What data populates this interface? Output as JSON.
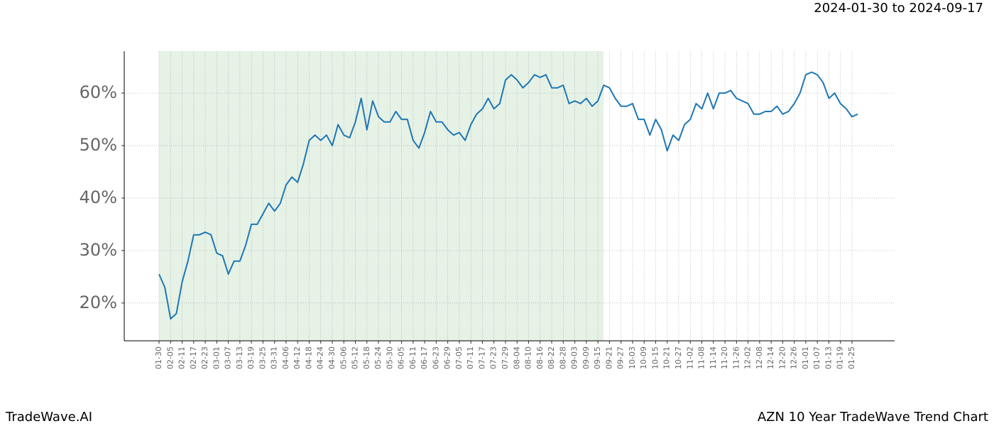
{
  "chart_data": {
    "type": "line",
    "title": "AZN 10 Year TradeWave Trend Chart",
    "subtitle": "2024-01-30 to 2024-09-17",
    "brand": "TradeWave.AI",
    "categories": [
      "01-30",
      null,
      "02-05",
      null,
      "02-11",
      null,
      "02-17",
      null,
      "02-23",
      null,
      "03-01",
      null,
      "03-07",
      null,
      "03-13",
      null,
      "03-19",
      null,
      "03-25",
      null,
      "03-31",
      null,
      "04-06",
      null,
      "04-12",
      null,
      "04-18",
      null,
      "04-24",
      null,
      "04-30",
      null,
      "05-06",
      null,
      "05-12",
      null,
      "05-18",
      null,
      "05-24",
      null,
      "05-30",
      null,
      "06-05",
      null,
      "06-11",
      null,
      "06-17",
      null,
      "06-23",
      null,
      "06-29",
      null,
      "07-05",
      null,
      "07-11",
      null,
      "07-17",
      null,
      "07-23",
      null,
      "07-29",
      null,
      "08-04",
      null,
      "08-10",
      null,
      "08-16",
      null,
      "08-22",
      null,
      "08-28",
      null,
      "09-03",
      null,
      "09-09",
      null,
      "09-15",
      null,
      "09-21",
      null,
      "09-27",
      null,
      "10-03",
      null,
      "10-09",
      null,
      "10-15",
      null,
      "10-21",
      null,
      "10-27",
      null,
      "11-02",
      null,
      "11-08",
      null,
      "11-14",
      null,
      "11-20",
      null,
      "11-26",
      null,
      "12-02",
      null,
      "12-08",
      null,
      "12-14",
      null,
      "12-20",
      null,
      "12-26",
      null,
      "01-01",
      null,
      "01-07",
      null,
      "01-13",
      null,
      "01-19",
      null,
      "01-25",
      null
    ],
    "series": [
      {
        "name": "AZN",
        "color": "#1f77b4",
        "values": [
          25.5,
          23,
          17,
          18,
          24,
          28,
          33,
          33,
          33.5,
          33,
          29.5,
          29,
          25.5,
          28,
          28,
          31,
          35,
          35,
          37,
          39,
          37.5,
          39,
          42.5,
          44,
          43,
          46.5,
          51,
          52,
          51,
          52,
          50,
          54,
          52,
          51.5,
          54.5,
          59,
          53,
          58.5,
          55.5,
          54.5,
          54.5,
          56.5,
          55,
          55,
          51,
          49.5,
          52.5,
          56.5,
          54.5,
          54.5,
          53,
          52,
          52.5,
          51,
          54,
          56,
          57,
          59,
          57,
          58,
          62.5,
          63.5,
          62.5,
          61,
          62,
          63.5,
          63,
          63.5,
          61,
          61,
          61.5,
          58,
          58.5,
          58,
          59,
          57.5,
          58.5,
          61.5,
          61,
          59,
          57.5,
          57.5,
          58,
          55,
          55,
          52,
          55,
          53,
          49,
          52,
          51,
          54,
          55,
          58,
          57,
          60,
          57,
          60,
          60,
          60.5,
          59,
          58.5,
          58,
          56,
          56,
          56.5,
          56.5,
          57.5,
          56,
          56.5,
          58,
          60,
          63.5,
          64,
          63.5,
          62,
          59,
          60,
          58,
          57,
          55.5,
          56
        ]
      }
    ],
    "shade": [
      0,
      77
    ],
    "shade_color": "#e6f2e6",
    "ylim": [
      12.8,
      68
    ],
    "yticks": [
      {
        "value": 20,
        "label": "20%"
      },
      {
        "value": 30,
        "label": "30%"
      },
      {
        "value": 40,
        "label": "40%"
      },
      {
        "value": 50,
        "label": "50%"
      },
      {
        "value": 60,
        "label": "60%"
      }
    ],
    "grid": true
  }
}
